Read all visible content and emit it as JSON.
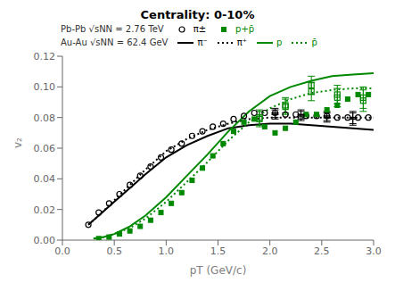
{
  "chart_data": {
    "type": "line",
    "title": "Centrality: 0-10%",
    "x_label": "pT (GeV/c)",
    "y_label": "v₂",
    "xlim": [
      0,
      3.0
    ],
    "ylim": [
      0,
      0.12
    ],
    "xticks": [
      {
        "value": 0,
        "label": "0.0"
      },
      {
        "value": 0.5,
        "label": "0.5"
      },
      {
        "value": 1.0,
        "label": "1.0"
      },
      {
        "value": 1.5,
        "label": "1.5"
      },
      {
        "value": 2.0,
        "label": "2.0"
      },
      {
        "value": 2.5,
        "label": "2.5"
      },
      {
        "value": 3.0,
        "label": "3.0"
      }
    ],
    "yticks": [
      {
        "value": 0,
        "label": "0.00"
      },
      {
        "value": 0.02,
        "label": "0.02"
      },
      {
        "value": 0.04,
        "label": "0.04"
      },
      {
        "value": 0.06,
        "label": "0.06"
      },
      {
        "value": 0.08,
        "label": "0.08"
      },
      {
        "value": 0.1,
        "label": "0.10"
      },
      {
        "value": 0.12,
        "label": "0.12"
      }
    ],
    "annotations": [
      "Pb-Pb √sNN = 2.76 TeV",
      "Au-Au √sNN = 62.4 GeV"
    ],
    "series": [
      {
        "name": "π±",
        "type": "scatter",
        "marker": "open_circle",
        "color": "#000000",
        "x": [
          0.25,
          0.35,
          0.45,
          0.55,
          0.65,
          0.75,
          0.85,
          0.95,
          1.05,
          1.15,
          1.25,
          1.35,
          1.45,
          1.55,
          1.65,
          1.75,
          1.85,
          1.95,
          2.05,
          2.15,
          2.25,
          2.35,
          2.45,
          2.55,
          2.65,
          2.75,
          2.85,
          2.95
        ],
        "values": [
          0.01,
          0.018,
          0.024,
          0.03,
          0.036,
          0.042,
          0.048,
          0.054,
          0.059,
          0.063,
          0.068,
          0.071,
          0.074,
          0.076,
          0.079,
          0.081,
          0.083,
          0.083,
          0.083,
          0.082,
          0.082,
          0.081,
          0.081,
          0.081,
          0.08,
          0.08,
          0.08,
          0.08
        ]
      },
      {
        "name": "p+p̄",
        "type": "scatter",
        "marker": "square",
        "color": "#008800",
        "x": [
          0.35,
          0.45,
          0.55,
          0.65,
          0.75,
          0.85,
          0.95,
          1.05,
          1.15,
          1.25,
          1.35,
          1.45,
          1.55,
          1.65,
          1.75,
          1.85,
          1.95,
          2.05,
          2.15,
          2.25,
          2.35,
          2.45,
          2.55,
          2.65,
          2.75,
          2.85,
          2.95
        ],
        "values": [
          0.001,
          0.002,
          0.004,
          0.006,
          0.009,
          0.013,
          0.018,
          0.024,
          0.031,
          0.039,
          0.047,
          0.055,
          0.063,
          0.071,
          0.077,
          0.079,
          0.074,
          0.07,
          0.073,
          0.077,
          0.082,
          0.082,
          0.085,
          0.088,
          0.092,
          0.095,
          0.095
        ]
      },
      {
        "name": "π⁻",
        "type": "line",
        "line_style": "solid",
        "color": "#000000",
        "x": [
          0.25,
          0.35,
          0.5,
          0.65,
          0.8,
          1.0,
          1.2,
          1.4,
          1.6,
          1.8,
          2.0,
          2.2,
          2.4,
          2.6,
          2.8,
          3.0
        ],
        "values": [
          0.01,
          0.016,
          0.025,
          0.034,
          0.043,
          0.054,
          0.062,
          0.068,
          0.073,
          0.075,
          0.076,
          0.076,
          0.075,
          0.074,
          0.073,
          0.072
        ]
      },
      {
        "name": "π⁺",
        "type": "line",
        "line_style": "dotted",
        "color": "#000000",
        "x": [
          0.25,
          0.35,
          0.5,
          0.65,
          0.8,
          1.0,
          1.2,
          1.4,
          1.6,
          1.8,
          2.0,
          2.2,
          2.4,
          2.6,
          2.8,
          3.0
        ],
        "values": [
          0.01,
          0.016,
          0.026,
          0.036,
          0.046,
          0.058,
          0.066,
          0.072,
          0.076,
          0.079,
          0.08,
          0.08,
          0.08,
          0.08,
          0.08,
          0.08
        ]
      },
      {
        "name": "p",
        "type": "line",
        "line_style": "solid",
        "color": "#008800",
        "x": [
          0.3,
          0.4,
          0.5,
          0.65,
          0.8,
          1.0,
          1.2,
          1.4,
          1.6,
          1.8,
          2.0,
          2.2,
          2.4,
          2.6,
          2.8,
          3.0
        ],
        "values": [
          0.001,
          0.002,
          0.004,
          0.009,
          0.016,
          0.028,
          0.042,
          0.056,
          0.071,
          0.084,
          0.094,
          0.1,
          0.104,
          0.107,
          0.108,
          0.109
        ]
      },
      {
        "name": "p̄",
        "type": "line",
        "line_style": "dotted",
        "color": "#008800",
        "x": [
          0.3,
          0.4,
          0.5,
          0.65,
          0.8,
          1.0,
          1.2,
          1.4,
          1.6,
          1.8,
          2.0,
          2.2,
          2.4,
          2.6,
          2.8,
          3.0
        ],
        "values": [
          0.001,
          0.002,
          0.004,
          0.008,
          0.014,
          0.025,
          0.038,
          0.051,
          0.065,
          0.077,
          0.086,
          0.092,
          0.096,
          0.098,
          0.099,
          0.099
        ]
      },
      {
        "type": "scatter",
        "marker": "dash",
        "color": "#000000",
        "x": [
          2.05,
          2.3,
          2.55,
          2.8
        ],
        "values": [
          0.082,
          0.081,
          0.08,
          0.079
        ],
        "errors": [
          0.003,
          0.003,
          0.003,
          0.004
        ]
      },
      {
        "type": "scatter",
        "marker": "dash",
        "color": "#000000",
        "x": [
          2.05,
          2.3,
          2.55,
          2.8
        ],
        "values": [
          0.083,
          0.082,
          0.081,
          0.08
        ],
        "errors": [
          0.003,
          0.003,
          0.003,
          0.004
        ]
      },
      {
        "type": "scatter",
        "marker": "open_square",
        "color": "#008800",
        "x": [
          1.9,
          2.15,
          2.4,
          2.65,
          2.9
        ],
        "values": [
          0.08,
          0.088,
          0.101,
          0.095,
          0.091
        ],
        "errors": [
          0.005,
          0.005,
          0.006,
          0.006,
          0.007
        ]
      },
      {
        "type": "scatter",
        "marker": "open_square",
        "color": "#008800",
        "x": [
          1.9,
          2.15,
          2.4,
          2.65,
          2.9
        ],
        "values": [
          0.079,
          0.087,
          0.097,
          0.093,
          0.093
        ],
        "errors": [
          0.005,
          0.005,
          0.006,
          0.006,
          0.007
        ]
      }
    ]
  }
}
